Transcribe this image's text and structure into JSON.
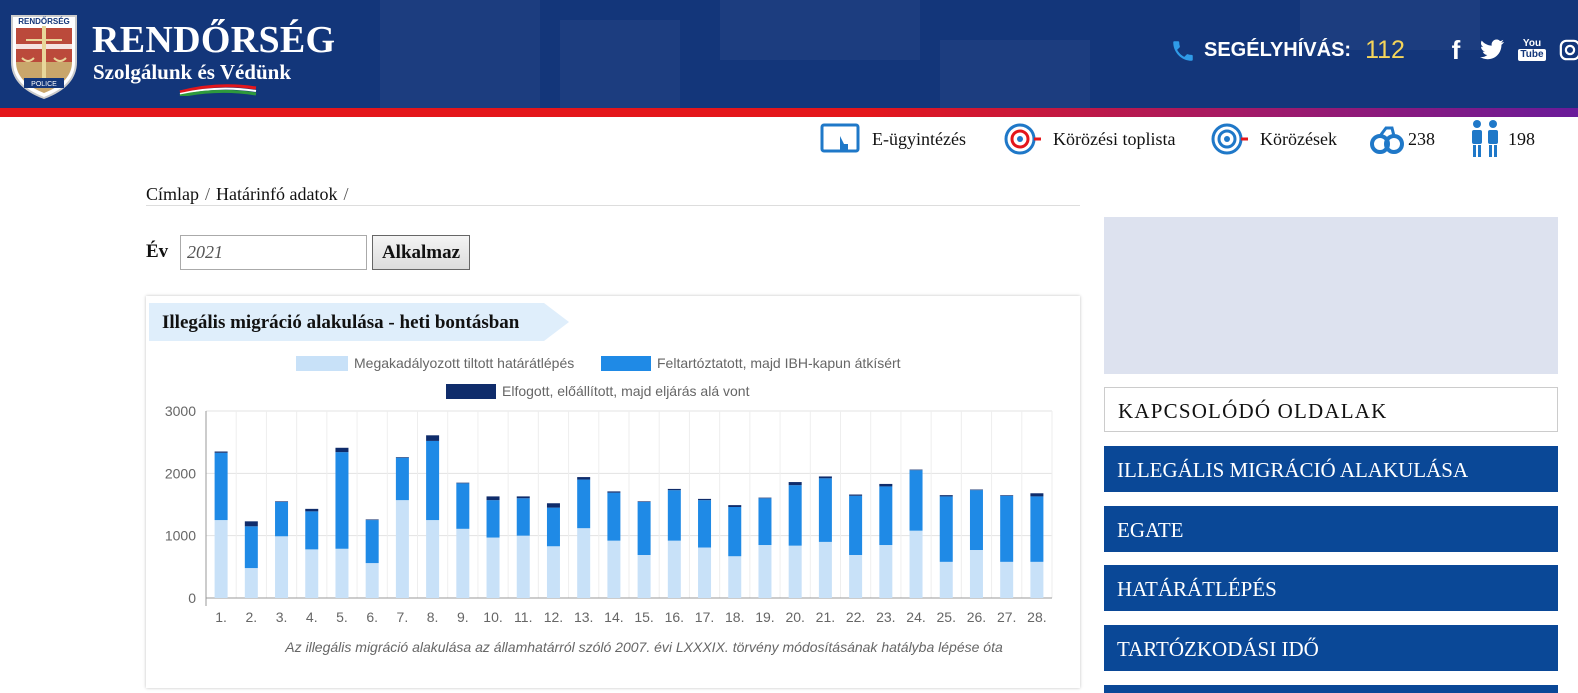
{
  "header": {
    "brand_title": "RENDŐRSÉG",
    "brand_subtitle": "Szolgálunk és Védünk",
    "logo_top_text": "RENDŐRSÉG",
    "logo_bottom_text": "POLICE",
    "hotline_label": "SEGÉLYHÍVÁS:",
    "hotline_number": "112",
    "social": [
      {
        "icon": "facebook-icon",
        "glyph": "f"
      },
      {
        "icon": "twitter-icon",
        "glyph": "twitter"
      },
      {
        "icon": "youtube-icon",
        "glyph": "You Tube"
      },
      {
        "icon": "instagram-icon",
        "glyph": "instagram"
      }
    ],
    "colors": {
      "bg": "#13367a",
      "hotline_number": "#f5d55a"
    }
  },
  "util_nav": {
    "e_admin": "E-ügyintézés",
    "wanted_top": "Körözési toplista",
    "wanted": "Körözések",
    "arrested_count": "238",
    "missing_count": "198"
  },
  "breadcrumb": {
    "home": "Címlap",
    "current": "Határinfó adatok",
    "separator": "/"
  },
  "filter": {
    "year_label": "Év",
    "year_value": "2021",
    "apply_label": "Alkalmaz"
  },
  "chart_data": {
    "type": "bar",
    "stacked": true,
    "title": "Illegális migráció alakulása - heti bontásban",
    "caption": "Az illegális migráció alakulása az államhatárról szóló 2007. évi LXXXIX. törvény módosításának hatályba lépése óta",
    "categories": [
      "1.",
      "2.",
      "3.",
      "4.",
      "5.",
      "6.",
      "7.",
      "8.",
      "9.",
      "10.",
      "11.",
      "12.",
      "13.",
      "14.",
      "15.",
      "16.",
      "17.",
      "18.",
      "19.",
      "20.",
      "21.",
      "22.",
      "23.",
      "24.",
      "25.",
      "26.",
      "27.",
      "28."
    ],
    "ylim": [
      0,
      3000
    ],
    "yticks": [
      "0",
      "1000",
      "2000",
      "3000"
    ],
    "series": [
      {
        "name": "Megakadályozott tiltott határátlépés",
        "color": "#c8e1f8",
        "values": [
          1250,
          480,
          990,
          780,
          790,
          560,
          1570,
          1250,
          1110,
          970,
          1000,
          830,
          1120,
          920,
          690,
          920,
          810,
          670,
          850,
          840,
          900,
          690,
          850,
          1080,
          580,
          770,
          580,
          580
        ]
      },
      {
        "name": "Feltartóztatott, majd IBH-kapun átkísért",
        "color": "#1f8ae6",
        "values": [
          1080,
          670,
          550,
          610,
          1550,
          690,
          680,
          1270,
          730,
          600,
          600,
          620,
          780,
          770,
          850,
          810,
          760,
          790,
          750,
          970,
          1020,
          950,
          940,
          970,
          1050,
          960,
          1060,
          1050
        ]
      },
      {
        "name": "Elfogott, előállított, majd eljárás alá vont",
        "color": "#0f2c6b",
        "values": [
          20,
          80,
          10,
          40,
          70,
          10,
          10,
          90,
          10,
          60,
          30,
          70,
          40,
          20,
          10,
          20,
          20,
          30,
          10,
          50,
          30,
          20,
          40,
          10,
          20,
          10,
          10,
          50
        ]
      }
    ]
  },
  "sidebar": {
    "related_heading": "KAPCSOLÓDÓ OLDALAK",
    "links": [
      "ILLEGÁLIS MIGRÁCIÓ ALAKULÁSA",
      "EGATE",
      "HATÁRÁTLÉPÉS",
      "TARTÓZKODÁSI IDŐ"
    ]
  }
}
